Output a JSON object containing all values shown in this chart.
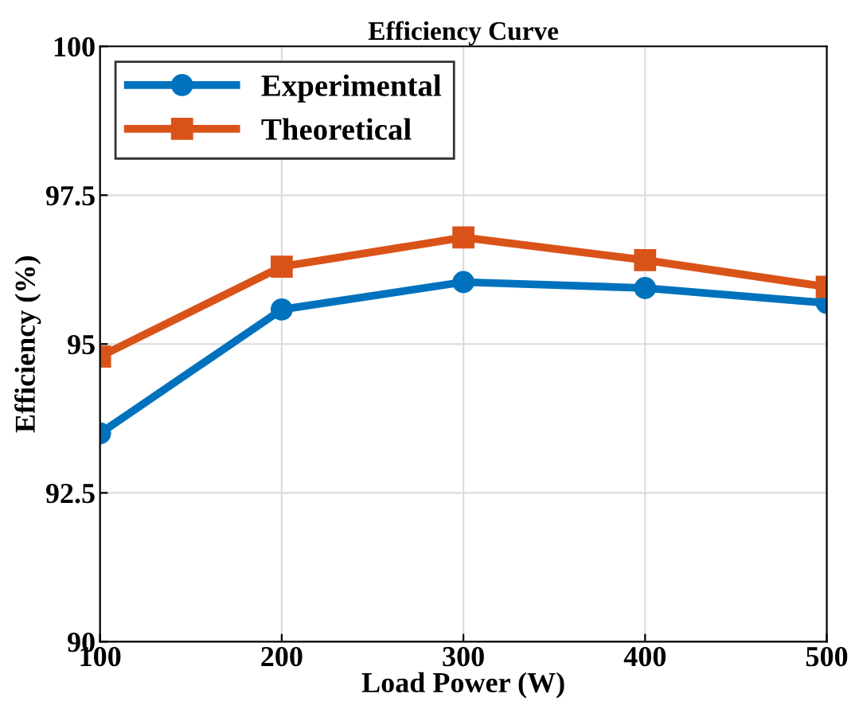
{
  "chart_data": {
    "type": "line",
    "title": "Efficiency Curve",
    "xlabel": "Load Power (W)",
    "ylabel": "Efficiency (%)",
    "x": [
      100,
      200,
      300,
      400,
      500
    ],
    "series": [
      {
        "name": "Experimental",
        "color": "#0072bd",
        "marker": "circle",
        "values": [
          93.5,
          95.58,
          96.04,
          95.94,
          95.69
        ]
      },
      {
        "name": "Theoretical",
        "color": "#d95319",
        "marker": "square",
        "values": [
          94.79,
          96.3,
          96.79,
          96.41,
          95.96
        ]
      }
    ],
    "xlim": [
      100,
      500
    ],
    "xticks": [
      100,
      200,
      300,
      400,
      500
    ],
    "ylim": [
      90,
      100
    ],
    "yticks": [
      90,
      92.5,
      95,
      97.5,
      100
    ],
    "grid": true,
    "legend": "top left",
    "line_style": "solid"
  }
}
